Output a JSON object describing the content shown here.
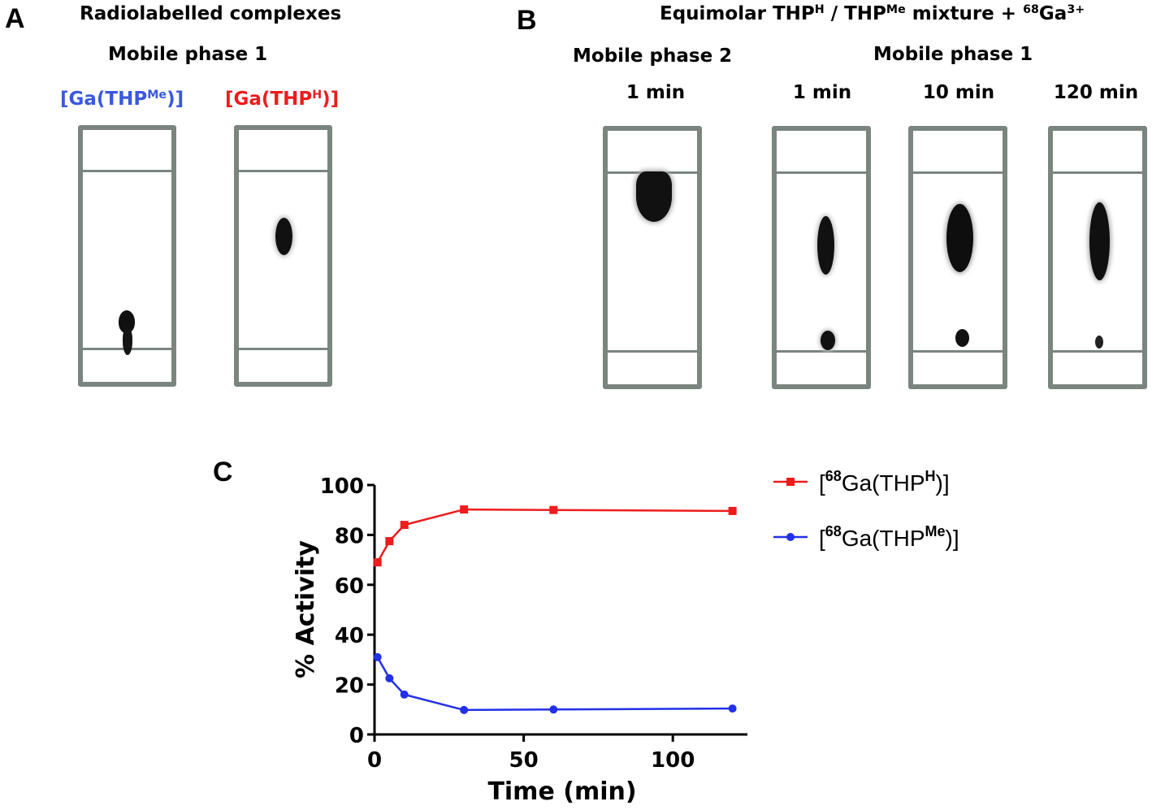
{
  "panel_a": {
    "letter": "A",
    "title": "Radiolabelled complexes",
    "subtitle": "Mobile phase 1",
    "lanes": [
      {
        "label_prefix": "[Ga(THP",
        "label_sup": "Me",
        "label_suffix": ")]",
        "color": "#3a58e0"
      },
      {
        "label_prefix": "[Ga(THP",
        "label_sup": "H",
        "label_suffix": ")]",
        "color": "#ee1c1c"
      }
    ]
  },
  "panel_b": {
    "letter": "B",
    "title": {
      "p1": "Equimolar THP",
      "s1": "H",
      "p2": " / THP",
      "s2": "Me",
      "p3": " mixture + ",
      "s3": "68",
      "p4": "Ga",
      "s4": "3+"
    },
    "phase2_label": "Mobile phase 2",
    "phase1_label": "Mobile phase 1",
    "times": [
      "1 min",
      "1 min",
      "10 min",
      "120 min"
    ]
  },
  "chart_data": {
    "type": "line",
    "panel_letter": "C",
    "xlabel": "Time (min)",
    "ylabel": "% Activity",
    "xlim": [
      0,
      125
    ],
    "ylim": [
      0,
      100
    ],
    "xticks": [
      "0",
      "50",
      "100"
    ],
    "yticks": [
      "0",
      "20",
      "40",
      "60",
      "80",
      "100"
    ],
    "legend_position": "right",
    "series": [
      {
        "name": "THPH",
        "legend_sup": "68",
        "legend_mid": "Ga(THP",
        "legend_sup2": "H",
        "legend_end": ")]",
        "color": "#ee1c1c",
        "marker": "square",
        "x": [
          1,
          5,
          10,
          30,
          60,
          120
        ],
        "y": [
          69,
          77.5,
          84,
          90.2,
          90,
          89.6
        ]
      },
      {
        "name": "THPMe",
        "legend_sup": "68",
        "legend_mid": "Ga(THP",
        "legend_sup2": "Me",
        "legend_end": ")]",
        "color": "#2230e8",
        "marker": "circle",
        "x": [
          1,
          5,
          10,
          30,
          60,
          120
        ],
        "y": [
          31,
          22.5,
          16,
          9.8,
          10,
          10.4
        ]
      }
    ]
  }
}
